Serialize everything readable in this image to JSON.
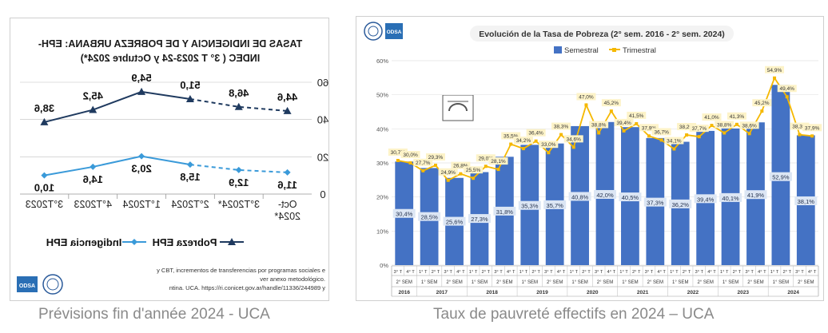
{
  "captions": {
    "left": "Prévisions fin d'année 2024 - UCA",
    "right": "Taux de pauvreté effectifs en 2024 – UCA"
  },
  "left_chart_title": [
    "TASAS DE INDIGENCIA Y DE POBREZA URBANA: EPH-",
    "INDEC ( 3°  T 2023-24 y Octubre 2024*)"
  ],
  "left_notes": [
    "y CBT, incrementos de transferencias por programas sociales e",
    "ver anexo metodológico.",
    "ntina. UCA. https://ri.conicet.gov.ar/handle/11336/244989  y"
  ],
  "left_logo_text": "ODSA",
  "right_logo_text": "ODSA",
  "colors": {
    "pobreza": "#1f3a5f",
    "indigencia": "#3a9ad9",
    "bar": "#4472c4",
    "trimestral": "#f5b800"
  },
  "chart_data": [
    {
      "type": "line",
      "mirrored": true,
      "title": "TASAS DE INDIGENCIA Y DE POBREZA URBANA: EPH-INDEC ( 3°  T 2023-24 y Octubre 2024*)",
      "categories": [
        "3°T2023",
        "4°T2023",
        "1°T2024",
        "2°T2024",
        "3°T2024*",
        "Oct-2024*"
      ],
      "yticks": [
        "60",
        "40",
        "20",
        "0"
      ],
      "ylim": [
        0,
        60
      ],
      "series": [
        {
          "name": "Pobreza EPH",
          "values": [
            38.6,
            45.2,
            54.9,
            51.0,
            46.8,
            44.6
          ],
          "labels": [
            "38,6",
            "45,2",
            "54,9",
            "51,0",
            "46,8",
            "44,6"
          ],
          "dashed_from_index": 3
        },
        {
          "name": "Indigencia EPH",
          "values": [
            10.0,
            14.6,
            20.3,
            15.8,
            12.9,
            11.6
          ],
          "labels": [
            "10,0",
            "14,6",
            "20,3",
            "15,8",
            "12,9",
            "11,6"
          ],
          "dashed_from_index": 3
        }
      ],
      "legend": "bottom"
    },
    {
      "type": "bar",
      "title": "Evolución de la Tasa de Pobreza (2° sem. 2016 - 2° sem. 2024)",
      "ylim": [
        0,
        60
      ],
      "yticks": [
        "0%",
        "10%",
        "20%",
        "30%",
        "40%",
        "50%",
        "60%"
      ],
      "years": [
        "2016",
        "2017",
        "2018",
        "2019",
        "2020",
        "2021",
        "2022",
        "2023",
        "2024"
      ],
      "semesters": [
        "2° SEM",
        "1° SEM",
        "2° SEM",
        "1° SEM",
        "2° SEM",
        "1° SEM",
        "2° SEM",
        "1° SEM",
        "2° SEM",
        "1° SEM",
        "2° SEM",
        "1° SEM",
        "2° SEM",
        "1° SEM",
        "2° SEM",
        "1° SEM",
        "2° SEM"
      ],
      "quarters": [
        "3° T",
        "4° T",
        "1° T",
        "2° T",
        "3° T",
        "4° T",
        "1° T",
        "2° T",
        "3° T",
        "4° T",
        "1° T",
        "2° T",
        "3° T",
        "4° T",
        "1° T",
        "2° T",
        "3° T",
        "4° T",
        "1° T",
        "2° T",
        "3° T",
        "4° T",
        "1° T",
        "2° T",
        "3° T",
        "4° T",
        "1° T",
        "2° T",
        "3° T",
        "4° T",
        "1° T",
        "2° T",
        "3° T",
        "4° T"
      ],
      "series": [
        {
          "name": "Semestral",
          "values": [
            30.4,
            28.5,
            25.6,
            27.3,
            31.8,
            35.3,
            35.7,
            40.8,
            42.0,
            40.5,
            37.3,
            36.2,
            39.4,
            40.1,
            41.9,
            52.9,
            38.1
          ],
          "labels": [
            "30,4%",
            "28,5%",
            "25,6%",
            "27,3%",
            "31,8%",
            "35,3%",
            "35,7%",
            "40,8%",
            "42,0%",
            "40,5%",
            "37,3%",
            "36,2%",
            "39,4%",
            "40,1%",
            "41,9%",
            "52,9%",
            "38,1%"
          ]
        },
        {
          "name": "Trimestral",
          "values": [
            30.7,
            30.0,
            27.7,
            29.3,
            24.9,
            26.8,
            25.5,
            29.0,
            28.1,
            35.5,
            34.2,
            36.4,
            33.0,
            38.3,
            34.6,
            47.0,
            38.8,
            45.2,
            39.4,
            41.5,
            37.9,
            36.7,
            34.1,
            38.2,
            37.7,
            41.0,
            38.8,
            41.3,
            38.6,
            45.2,
            54.9,
            49.4,
            38.3,
            37.9
          ],
          "labels": [
            "30,7%",
            "30,0%",
            "27,7%",
            "29,3%",
            "24,9%",
            "26,8%",
            "25,5%",
            "29,0%",
            "28,1%",
            "35,5%",
            "34,2%",
            "36,4%",
            "33,0%",
            "38,3%",
            "34,6%",
            "47,0%",
            "38,8%",
            "45,2%",
            "39,4%",
            "41,5%",
            "37,9%",
            "36,7%",
            "34,1%",
            "38,2%",
            "37,7%",
            "41,0%",
            "38,8%",
            "41,3%",
            "38,6%",
            "45,2%",
            "54,9%",
            "49,4%",
            "38,3%",
            "37,9%"
          ]
        }
      ],
      "legend": "top"
    }
  ]
}
